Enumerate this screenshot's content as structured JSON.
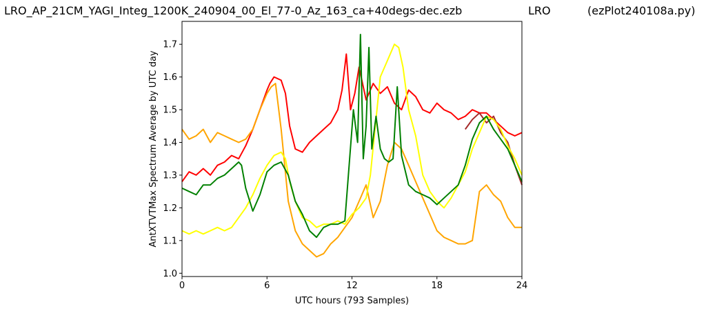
{
  "header": {
    "title_left": "LRO_AP_21CM_YAGI_Integ_1200K_240904_00_El_77-0_Az_163_ca+40degs-dec.ezb",
    "title_mid": "LRO",
    "title_right": "(ezPlot240108a.py)"
  },
  "chart_data": {
    "type": "line",
    "title": "LRO_AP_21CM_YAGI_Integ_1200K_240904_00_El_77-0_Az_163_ca+40degs-dec.ezb",
    "xlabel": "UTC hours  (793 Samples)",
    "ylabel": "AntXTVTMax Spectrum Average by UTC day",
    "xlim": [
      0,
      24
    ],
    "ylim": [
      0.99,
      1.77
    ],
    "xticks": [
      "0",
      "6",
      "12",
      "18",
      "24"
    ],
    "yticks": [
      "1.0",
      "1.1",
      "1.2",
      "1.3",
      "1.4",
      "1.5",
      "1.6",
      "1.7"
    ],
    "grid": false,
    "series": [
      {
        "color": "#ff0000",
        "x": [
          0,
          0.5,
          1,
          1.5,
          2,
          2.5,
          3,
          3.5,
          4,
          4.5,
          5,
          5.5,
          6,
          6.2,
          6.5,
          7,
          7.3,
          7.6,
          8,
          8.5,
          9,
          9.5,
          10,
          10.5,
          11,
          11.3,
          11.6,
          11.9,
          12.2,
          12.5,
          13,
          13.5,
          14,
          14.5,
          15,
          15.5,
          16,
          16.5,
          17,
          17.5,
          18,
          18.5,
          19,
          19.5,
          20,
          20.5,
          21,
          21.5,
          22,
          22.5,
          23,
          23.5,
          24
        ],
        "values": [
          1.28,
          1.31,
          1.3,
          1.32,
          1.3,
          1.33,
          1.34,
          1.36,
          1.35,
          1.39,
          1.44,
          1.5,
          1.56,
          1.58,
          1.6,
          1.59,
          1.55,
          1.45,
          1.38,
          1.37,
          1.4,
          1.42,
          1.44,
          1.46,
          1.5,
          1.56,
          1.67,
          1.5,
          1.55,
          1.63,
          1.53,
          1.58,
          1.55,
          1.57,
          1.52,
          1.5,
          1.56,
          1.54,
          1.5,
          1.49,
          1.52,
          1.5,
          1.49,
          1.47,
          1.48,
          1.5,
          1.49,
          1.49,
          1.47,
          1.45,
          1.43,
          1.42,
          1.43
        ]
      },
      {
        "color": "#a52a2a",
        "x": [
          20,
          20.5,
          21,
          21.5,
          22,
          22.5,
          23,
          23.5,
          24
        ],
        "values": [
          1.44,
          1.47,
          1.49,
          1.46,
          1.48,
          1.43,
          1.4,
          1.33,
          1.27
        ]
      },
      {
        "color": "#ffa500",
        "x": [
          0,
          0.5,
          1,
          1.5,
          2,
          2.5,
          3,
          3.5,
          4,
          4.5,
          5,
          5.5,
          6,
          6.3,
          6.6,
          7,
          7.5,
          8,
          8.5,
          9,
          9.5,
          10,
          10.5,
          11,
          11.5,
          12,
          12.5,
          13,
          13.5,
          14,
          14.5,
          15,
          15.5,
          16,
          16.5,
          17,
          17.5,
          18,
          18.5,
          19,
          19.5,
          20,
          20.5,
          21,
          21.5,
          22,
          22.5,
          23,
          23.5,
          24
        ],
        "values": [
          1.44,
          1.41,
          1.42,
          1.44,
          1.4,
          1.43,
          1.42,
          1.41,
          1.4,
          1.41,
          1.44,
          1.5,
          1.55,
          1.57,
          1.58,
          1.44,
          1.22,
          1.13,
          1.09,
          1.07,
          1.05,
          1.06,
          1.09,
          1.11,
          1.14,
          1.17,
          1.22,
          1.27,
          1.17,
          1.22,
          1.33,
          1.4,
          1.38,
          1.33,
          1.28,
          1.23,
          1.18,
          1.13,
          1.11,
          1.1,
          1.09,
          1.09,
          1.1,
          1.25,
          1.27,
          1.24,
          1.22,
          1.17,
          1.14,
          1.14
        ]
      },
      {
        "color": "#ffff00",
        "x": [
          0,
          0.5,
          1,
          1.5,
          2,
          2.5,
          3,
          3.5,
          4,
          4.5,
          5,
          5.5,
          6,
          6.5,
          7,
          7.3,
          7.6,
          8,
          8.5,
          9,
          9.5,
          10,
          10.5,
          11,
          11.5,
          12,
          12.5,
          13,
          13.3,
          13.6,
          14,
          14.5,
          15,
          15.3,
          15.6,
          16,
          16.5,
          17,
          17.5,
          18,
          18.5,
          19,
          19.5,
          20,
          20.5,
          21,
          21.5,
          22,
          22.5,
          23,
          23.5,
          24
        ],
        "values": [
          1.13,
          1.12,
          1.13,
          1.12,
          1.13,
          1.14,
          1.13,
          1.14,
          1.17,
          1.2,
          1.24,
          1.29,
          1.33,
          1.36,
          1.37,
          1.35,
          1.28,
          1.22,
          1.17,
          1.16,
          1.14,
          1.15,
          1.15,
          1.16,
          1.15,
          1.18,
          1.2,
          1.23,
          1.3,
          1.43,
          1.6,
          1.65,
          1.7,
          1.69,
          1.63,
          1.5,
          1.42,
          1.3,
          1.25,
          1.22,
          1.2,
          1.23,
          1.27,
          1.31,
          1.38,
          1.43,
          1.48,
          1.47,
          1.44,
          1.39,
          1.35,
          1.3
        ]
      },
      {
        "color": "#008000",
        "x": [
          0,
          0.5,
          1,
          1.5,
          2,
          2.5,
          3,
          3.5,
          4,
          4.2,
          4.5,
          5,
          5.5,
          6,
          6.5,
          7,
          7.5,
          8,
          8.5,
          9,
          9.5,
          10,
          10.5,
          11,
          11.5,
          11.8,
          12.1,
          12.4,
          12.6,
          12.8,
          13,
          13.2,
          13.4,
          13.7,
          14,
          14.3,
          14.6,
          14.9,
          15.2,
          15.5,
          16,
          16.5,
          17,
          17.5,
          18,
          18.5,
          19,
          19.5,
          20,
          20.5,
          21,
          21.5,
          22,
          22.5,
          23,
          23.5,
          24
        ],
        "values": [
          1.26,
          1.25,
          1.24,
          1.27,
          1.27,
          1.29,
          1.3,
          1.32,
          1.34,
          1.33,
          1.26,
          1.19,
          1.24,
          1.31,
          1.33,
          1.34,
          1.3,
          1.22,
          1.18,
          1.13,
          1.11,
          1.14,
          1.15,
          1.15,
          1.16,
          1.33,
          1.5,
          1.4,
          1.73,
          1.35,
          1.45,
          1.69,
          1.38,
          1.48,
          1.38,
          1.35,
          1.34,
          1.35,
          1.57,
          1.36,
          1.27,
          1.25,
          1.24,
          1.23,
          1.21,
          1.23,
          1.25,
          1.27,
          1.33,
          1.41,
          1.46,
          1.48,
          1.44,
          1.41,
          1.38,
          1.33,
          1.28
        ]
      }
    ]
  }
}
